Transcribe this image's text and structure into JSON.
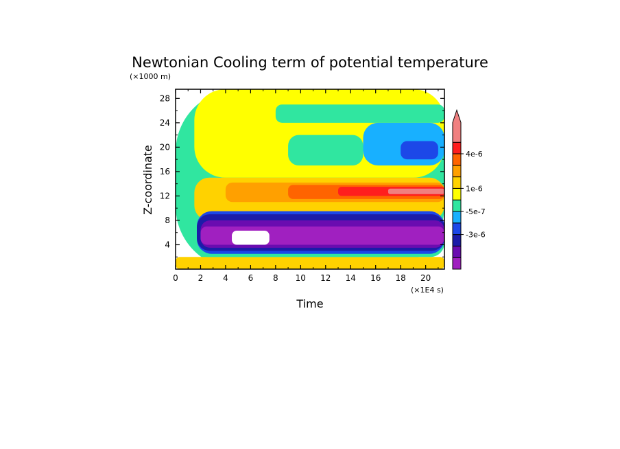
{
  "chart_data": {
    "type": "heatmap",
    "title": "Newtonian Cooling term of potential temperature",
    "xlabel": "Time",
    "ylabel": "Z-coordinate",
    "x_unit": "(×1E4 s)",
    "y_unit": "(×1000 m)",
    "xlim": [
      0,
      21.5
    ],
    "ylim": [
      0,
      29.5
    ],
    "x_ticks": [
      0,
      2,
      4,
      6,
      8,
      10,
      12,
      14,
      16,
      18,
      20
    ],
    "y_ticks": [
      4,
      8,
      12,
      16,
      20,
      24,
      28
    ],
    "colorbar": {
      "colors": [
        "#a020c0",
        "#6a0cb0",
        "#1c1ca8",
        "#1c48e8",
        "#18b0ff",
        "#30e6a0",
        "#ffff00",
        "#ffd200",
        "#ffa000",
        "#ff6400",
        "#ff1e1e",
        "#f08080"
      ],
      "labels": [
        {
          "text": "-3e-6",
          "level": 3
        },
        {
          "text": "-5e-7",
          "level": 5
        },
        {
          "text": "1e-6",
          "level": 7
        },
        {
          "text": "4e-6",
          "level": 10
        }
      ],
      "extend_top": true
    },
    "regions": [
      {
        "level": 5,
        "x": [
          0,
          21.5
        ],
        "y": [
          0,
          29.5
        ]
      },
      {
        "level": 6,
        "x": [
          1.5,
          21.5
        ],
        "y": [
          15,
          29.5
        ]
      },
      {
        "level": 5,
        "x": [
          8,
          21.5
        ],
        "y": [
          24,
          27
        ]
      },
      {
        "level": 5,
        "x": [
          9,
          15
        ],
        "y": [
          17,
          22
        ]
      },
      {
        "level": 4,
        "x": [
          15,
          21.5
        ],
        "y": [
          17,
          24
        ]
      },
      {
        "level": 3,
        "x": [
          18,
          21
        ],
        "y": [
          18,
          21
        ]
      },
      {
        "level": 7,
        "x": [
          1.5,
          21.5
        ],
        "y": [
          8,
          15
        ]
      },
      {
        "level": 8,
        "x": [
          4,
          21.5
        ],
        "y": [
          11,
          14.2
        ]
      },
      {
        "level": 9,
        "x": [
          9,
          21.5
        ],
        "y": [
          11.5,
          13.8
        ]
      },
      {
        "level": 10,
        "x": [
          13,
          21.5
        ],
        "y": [
          12,
          13.5
        ]
      },
      {
        "level": 11,
        "x": [
          17,
          21.5
        ],
        "y": [
          12.3,
          13.2
        ]
      },
      {
        "level": 7,
        "x": [
          0,
          21.5
        ],
        "y": [
          0,
          2
        ]
      },
      {
        "level": 5,
        "x": [
          1.5,
          21.5
        ],
        "y": [
          2,
          8.5
        ]
      },
      {
        "level": 3,
        "x": [
          1.7,
          21.5
        ],
        "y": [
          2.5,
          9.5
        ]
      },
      {
        "level": 2,
        "x": [
          1.7,
          21.5
        ],
        "y": [
          3,
          9
        ]
      },
      {
        "level": 1,
        "x": [
          2,
          21.5
        ],
        "y": [
          3.5,
          8
        ]
      },
      {
        "level": 0,
        "x": [
          2,
          21.5
        ],
        "y": [
          4,
          7
        ]
      },
      {
        "level": -1,
        "x": [
          4.5,
          7.5
        ],
        "y": [
          4,
          6.3
        ]
      }
    ]
  }
}
